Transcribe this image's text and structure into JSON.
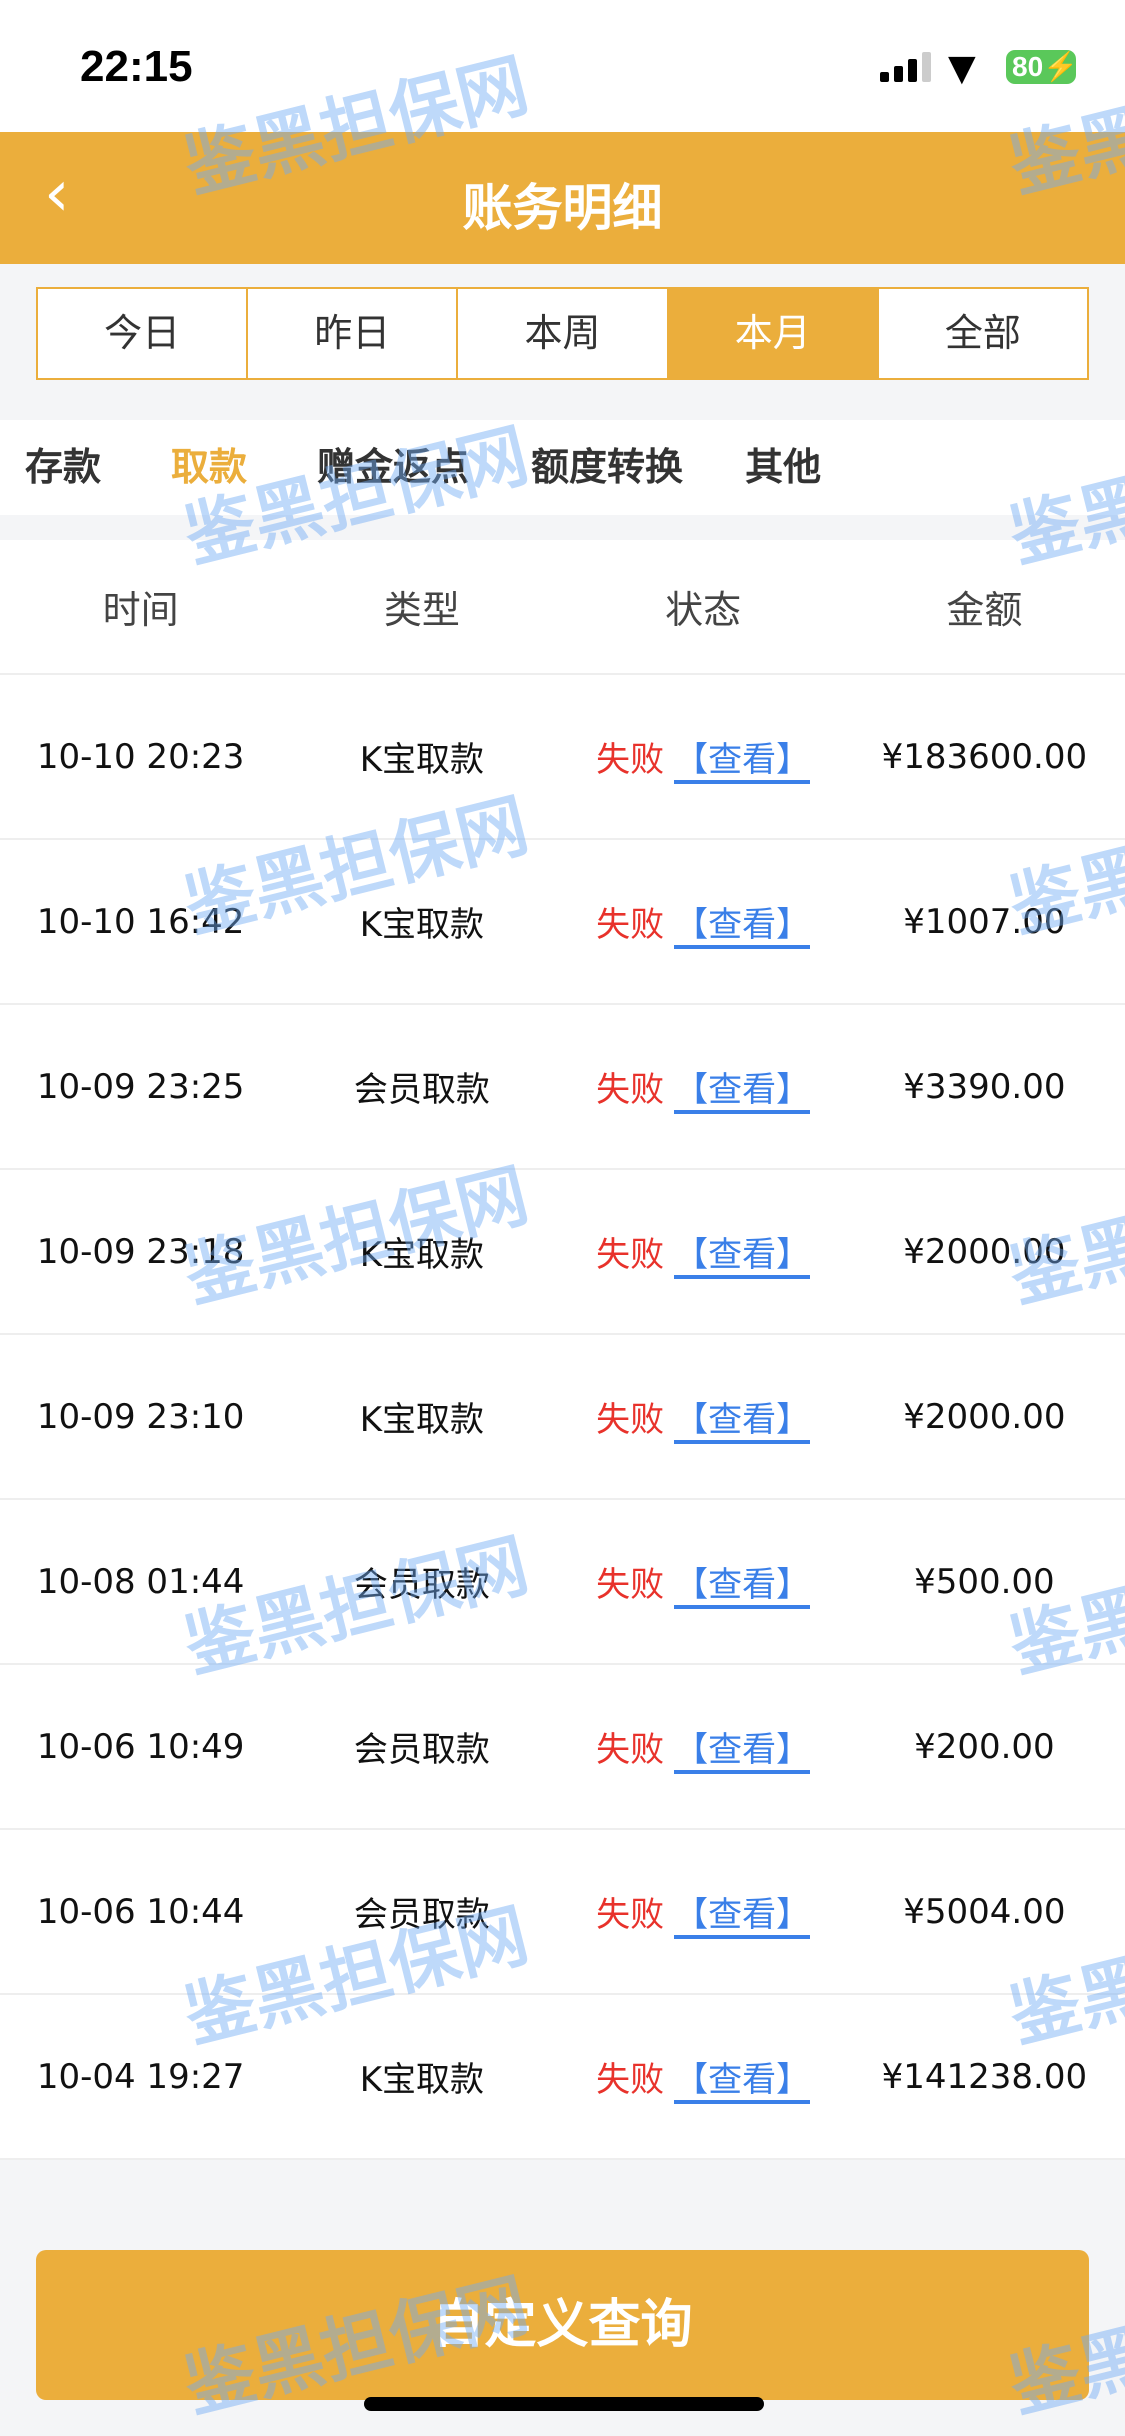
{
  "status_bar": {
    "time": "22:15",
    "battery": "80"
  },
  "header": {
    "title": "账务明细",
    "back_icon": "chevron-left-icon"
  },
  "range_tabs": [
    {
      "label": "今日"
    },
    {
      "label": "昨日"
    },
    {
      "label": "本周"
    },
    {
      "label": "本月",
      "active": true
    },
    {
      "label": "全部"
    }
  ],
  "category_tabs": [
    {
      "label": "存款"
    },
    {
      "label": "取款",
      "active": true
    },
    {
      "label": "赠金返点"
    },
    {
      "label": "额度转换"
    },
    {
      "label": "其他"
    }
  ],
  "table": {
    "columns": [
      "时间",
      "类型",
      "状态",
      "金额"
    ],
    "view_label": "【查看】",
    "rows": [
      {
        "time": "10-10 20:23",
        "type": "K宝取款",
        "status": "失败",
        "amount": "¥183600.00"
      },
      {
        "time": "10-10 16:42",
        "type": "K宝取款",
        "status": "失败",
        "amount": "¥1007.00"
      },
      {
        "time": "10-09 23:25",
        "type": "会员取款",
        "status": "失败",
        "amount": "¥3390.00"
      },
      {
        "time": "10-09 23:18",
        "type": "K宝取款",
        "status": "失败",
        "amount": "¥2000.00"
      },
      {
        "time": "10-09 23:10",
        "type": "K宝取款",
        "status": "失败",
        "amount": "¥2000.00"
      },
      {
        "time": "10-08 01:44",
        "type": "会员取款",
        "status": "失败",
        "amount": "¥500.00"
      },
      {
        "time": "10-06 10:49",
        "type": "会员取款",
        "status": "失败",
        "amount": "¥200.00"
      },
      {
        "time": "10-06 10:44",
        "type": "会员取款",
        "status": "失败",
        "amount": "¥5004.00"
      },
      {
        "time": "10-04 19:27",
        "type": "K宝取款",
        "status": "失败",
        "amount": "¥141238.00"
      }
    ]
  },
  "custom_query_label": "自定义查询",
  "watermark": "鉴黑担保网",
  "colors": {
    "accent": "#ebae3c",
    "fail": "#e8322b",
    "link": "#3a7fe8"
  }
}
